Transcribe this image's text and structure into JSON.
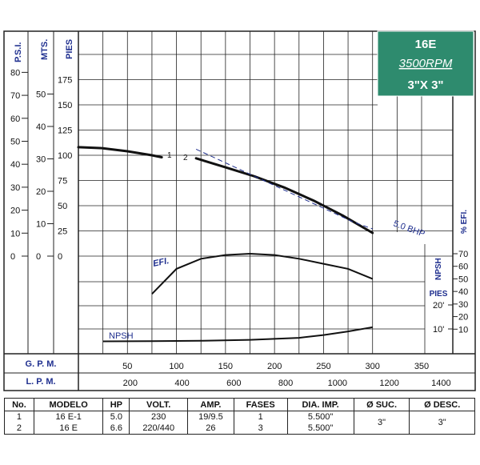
{
  "badge": {
    "model": "16E",
    "rpm": "3500RPM",
    "size": "3\"X 3\"",
    "color": "#2e8b6e"
  },
  "axis_titles": {
    "psi": "P.S.I.",
    "mts": "MTS.",
    "pies": "PIES",
    "efi": "% EFI.",
    "npsh": "NPSH",
    "npsh_unit": "PIES",
    "gpm": "G. P. M.",
    "lpm": "L. P. M."
  },
  "curve_labels": {
    "efi": "EFI.",
    "npsh": "NPSH",
    "bhp": "5.0 BHP",
    "pump1": "1",
    "pump2": "2"
  },
  "colors": {
    "curve": "#111111",
    "label_blue": "#1f2f8f",
    "grid": "#222222"
  },
  "chart_data": {
    "type": "line",
    "x_gpm_ticks": [
      "50",
      "100",
      "150",
      "200",
      "250",
      "300",
      "350"
    ],
    "x_lpm_ticks": [
      "200",
      "400",
      "600",
      "800",
      "1000",
      "1200",
      "1400"
    ],
    "psi_ticks": [
      "80",
      "70",
      "60",
      "50",
      "40",
      "30",
      "20",
      "10",
      "0"
    ],
    "mts_ticks": [
      "50",
      "40",
      "30",
      "20",
      "10",
      "0"
    ],
    "pies_ticks": [
      "175",
      "150",
      "125",
      "100",
      "75",
      "50",
      "25",
      "0"
    ],
    "efi_ticks": [
      "70",
      "60",
      "50",
      "40",
      "30",
      "20",
      "10"
    ],
    "npsh_ticks": [
      "20'",
      "10'"
    ],
    "xlim_gpm": [
      0,
      375
    ],
    "head_ylim_ft": [
      0,
      200
    ],
    "series": [
      {
        "name": "1",
        "x": [
          0,
          25,
          50,
          75,
          85
        ],
        "y": [
          108,
          107,
          104,
          100,
          98
        ]
      },
      {
        "name": "2",
        "x": [
          120,
          150,
          180,
          210,
          240,
          270,
          300
        ],
        "y": [
          97,
          88,
          79,
          68,
          55,
          40,
          23
        ]
      },
      {
        "name": "5.0 BHP",
        "x": [
          120,
          160,
          200,
          240,
          280,
          300
        ],
        "y": [
          106,
          88,
          70,
          52,
          34,
          27
        ]
      },
      {
        "name": "EFI.",
        "x": [
          75,
          100,
          125,
          150,
          175,
          200,
          225,
          250,
          275,
          300
        ],
        "y": [
          38,
          58,
          66,
          69,
          70,
          69,
          66,
          62,
          58,
          50
        ]
      },
      {
        "name": "NPSH",
        "x": [
          25,
          75,
          125,
          175,
          225,
          250,
          275,
          300
        ],
        "y": [
          0.7,
          1.0,
          1.6,
          3.2,
          6.5,
          11,
          17,
          24
        ]
      }
    ]
  },
  "table": {
    "headers": [
      "No.",
      "MODELO",
      "HP",
      "VOLT.",
      "AMP.",
      "FASES",
      "DIA. IMP.",
      "Ø SUC.",
      "Ø DESC."
    ],
    "rows": [
      {
        "no": "1",
        "modelo": "16 E-1",
        "hp": "5.0",
        "volt": "230",
        "amp": "19/9.5",
        "fases": "1",
        "dia": "5.500\""
      },
      {
        "no": "2",
        "modelo": "16 E",
        "hp": "6.6",
        "volt": "220/440",
        "amp": "26",
        "fases": "3",
        "dia": "5.500\""
      }
    ],
    "suc": "3\"",
    "desc": "3\""
  }
}
